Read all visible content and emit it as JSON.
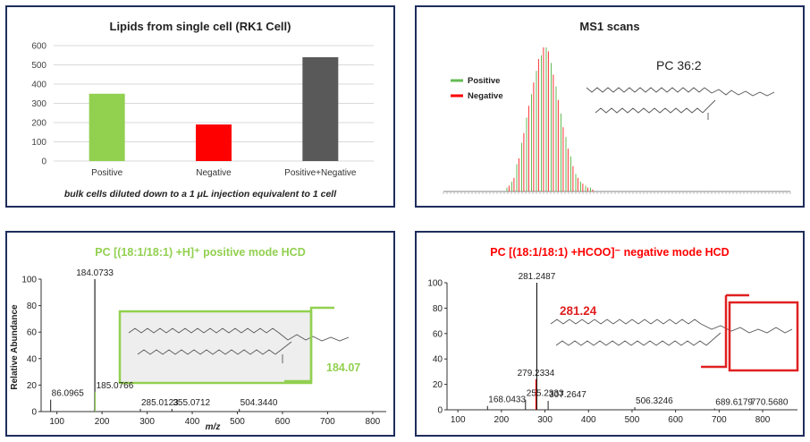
{
  "chart_data": [
    {
      "type": "bar",
      "title": "Lipids from single cell (RK1 Cell)",
      "categories": [
        "Positive",
        "Negative",
        "Positive+Negative"
      ],
      "values": [
        350,
        190,
        540
      ],
      "ylim": [
        0,
        600
      ],
      "yticks": [
        "0",
        "100",
        "200",
        "300",
        "400",
        "500",
        "600"
      ],
      "grid": true,
      "colors": [
        "#92d050",
        "#ff0000",
        "#595959"
      ],
      "note": "bulk cells diluted down to a 1 μL injection equivalent to 1 cell"
    },
    {
      "type": "bar",
      "title": "MS1 scans",
      "legend": [
        "Positive",
        "Negative"
      ],
      "legend_colors": [
        "#66bb55",
        "#ff0000"
      ],
      "legend_position": "left",
      "compound": "PC 36:2",
      "series": [
        {
          "name": "Positive",
          "values": [
            2,
            5,
            14,
            25,
            38,
            50,
            62,
            70,
            74,
            66,
            54,
            40,
            28,
            18,
            9,
            5,
            3,
            2
          ]
        },
        {
          "name": "Negative",
          "values": [
            3,
            7,
            17,
            30,
            44,
            56,
            68,
            74,
            72,
            60,
            47,
            33,
            22,
            13,
            7,
            4,
            2,
            1
          ]
        }
      ]
    },
    {
      "type": "bar",
      "title": "PC [(18:1/18:1) +H]⁺ positive mode HCD",
      "color": "#92d050",
      "ylabel": "Relative Abundance",
      "xlabel": "m/z",
      "xlim": [
        65,
        830
      ],
      "ylim": [
        0,
        100
      ],
      "xticks": [
        "100",
        "200",
        "300",
        "400",
        "500",
        "600",
        "700",
        "800"
      ],
      "yticks": [
        "0",
        "20",
        "40",
        "60",
        "80",
        "100"
      ],
      "peaks": [
        {
          "mz": 86.0965,
          "intensity": 9,
          "label": "86.0965"
        },
        {
          "mz": 184.0733,
          "intensity": 100,
          "label": "184.0733"
        },
        {
          "mz": 185.0766,
          "intensity": 15,
          "label": "185.0766"
        },
        {
          "mz": 285.0123,
          "intensity": 2,
          "label": "285.0123"
        },
        {
          "mz": 355.0712,
          "intensity": 2,
          "label": "355.0712"
        },
        {
          "mz": 504.344,
          "intensity": 2,
          "label": "504.3440"
        }
      ],
      "highlight": "184.07"
    },
    {
      "type": "bar",
      "title": "PC [(18:1/18:1) +HCOO]⁻ negative mode HCD",
      "color": "#ff0000",
      "xlim": [
        75,
        880
      ],
      "ylim": [
        0,
        100
      ],
      "xticks": [
        "100",
        "200",
        "300",
        "400",
        "500",
        "600",
        "700",
        "800"
      ],
      "yticks": [
        "0",
        "20",
        "40",
        "60",
        "80",
        "100"
      ],
      "peaks": [
        {
          "mz": 168.0433,
          "intensity": 3,
          "label": "168.0433"
        },
        {
          "mz": 255.2333,
          "intensity": 8,
          "label": "255.2333"
        },
        {
          "mz": 279.2334,
          "intensity": 24,
          "label": "279.2334"
        },
        {
          "mz": 281.2487,
          "intensity": 100,
          "label": "281.2487"
        },
        {
          "mz": 307.2647,
          "intensity": 7,
          "label": "307.2647"
        },
        {
          "mz": 506.3246,
          "intensity": 2,
          "label": "506.3246"
        },
        {
          "mz": 689.6179,
          "intensity": 1,
          "label": "689.6179"
        },
        {
          "mz": 770.568,
          "intensity": 1,
          "label": "770.5680"
        }
      ],
      "highlight": "281.24"
    }
  ]
}
